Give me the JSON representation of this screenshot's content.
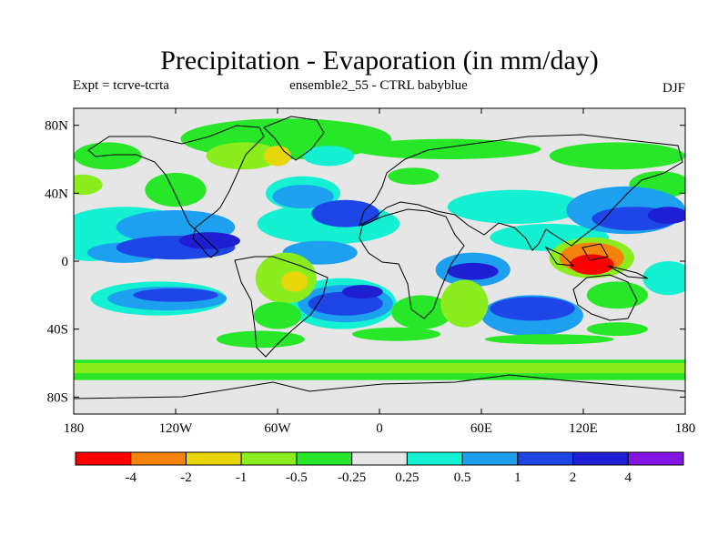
{
  "chart_data": {
    "type": "heatmap",
    "title": "Precipitation - Evaporation (in mm/day)",
    "left_label": "Expt = tcrve-tcrta",
    "center_label": "ensemble2_55 - CTRL babyblue",
    "right_label": "DJF",
    "projection": "cylindrical-equidistant",
    "x_range": [
      -180,
      180
    ],
    "y_range": [
      -90,
      90
    ],
    "x_ticks": [
      {
        "value": -180,
        "label": "180"
      },
      {
        "value": -120,
        "label": "120W"
      },
      {
        "value": -60,
        "label": "60W"
      },
      {
        "value": 0,
        "label": "0"
      },
      {
        "value": 60,
        "label": "60E"
      },
      {
        "value": 120,
        "label": "120E"
      },
      {
        "value": 180,
        "label": "180"
      }
    ],
    "y_ticks": [
      {
        "value": 80,
        "label": "80N"
      },
      {
        "value": 40,
        "label": "40N"
      },
      {
        "value": 0,
        "label": "0"
      },
      {
        "value": -40,
        "label": "40S"
      },
      {
        "value": -80,
        "label": "80S"
      }
    ],
    "colorbar": {
      "colors": [
        "#ff0000",
        "#f5820a",
        "#e6d60a",
        "#8ced1e",
        "#28e628",
        "#e6e6e6",
        "#14f0d2",
        "#1ea0f0",
        "#1e46e6",
        "#1e1ed2",
        "#8214e6"
      ],
      "labels": [
        "-4",
        "-2",
        "-1",
        "-0.5",
        "-0.25",
        "0.25",
        "0.5",
        "1",
        "2",
        "4"
      ]
    },
    "regions": [
      {
        "lon": -55,
        "lat": 72,
        "rx": 62,
        "ry": 12,
        "level": 4
      },
      {
        "lon": -160,
        "lat": 62,
        "rx": 20,
        "ry": 8,
        "level": 4
      },
      {
        "lon": -120,
        "lat": 42,
        "rx": 18,
        "ry": 10,
        "level": 4
      },
      {
        "lon": -80,
        "lat": 62,
        "rx": 22,
        "ry": 8,
        "level": 3
      },
      {
        "lon": -60,
        "lat": 62,
        "rx": 8,
        "ry": 6,
        "level": 2
      },
      {
        "lon": -30,
        "lat": 62,
        "rx": 15,
        "ry": 6,
        "level": 6
      },
      {
        "lon": 40,
        "lat": 66,
        "rx": 55,
        "ry": 6,
        "level": 4
      },
      {
        "lon": 20,
        "lat": 50,
        "rx": 15,
        "ry": 5,
        "level": 4
      },
      {
        "lon": 140,
        "lat": 62,
        "rx": 40,
        "ry": 8,
        "level": 4
      },
      {
        "lon": 165,
        "lat": 45,
        "rx": 18,
        "ry": 8,
        "level": 4
      },
      {
        "lon": 80,
        "lat": 32,
        "rx": 40,
        "ry": 10,
        "level": 6
      },
      {
        "lon": 100,
        "lat": 14,
        "rx": 35,
        "ry": 8,
        "level": 6
      },
      {
        "lon": -30,
        "lat": 22,
        "rx": 42,
        "ry": 12,
        "level": 6
      },
      {
        "lon": -150,
        "lat": 22,
        "rx": 35,
        "ry": 10,
        "level": 6
      },
      {
        "lon": -45,
        "lat": 40,
        "rx": 22,
        "ry": 10,
        "level": 6
      },
      {
        "lon": -170,
        "lat": 10,
        "rx": 20,
        "ry": 10,
        "level": 6
      },
      {
        "lon": 145,
        "lat": 30,
        "rx": 35,
        "ry": 14,
        "level": 7
      },
      {
        "lon": -150,
        "lat": 5,
        "rx": 22,
        "ry": 6,
        "level": 7
      },
      {
        "lon": -35,
        "lat": 5,
        "rx": 22,
        "ry": 7,
        "level": 7
      },
      {
        "lon": -120,
        "lat": 20,
        "rx": 35,
        "ry": 10,
        "level": 7
      },
      {
        "lon": -45,
        "lat": 38,
        "rx": 18,
        "ry": 7,
        "level": 7
      },
      {
        "lon": -120,
        "lat": 8,
        "rx": 35,
        "ry": 7,
        "level": 8
      },
      {
        "lon": -20,
        "lat": 28,
        "rx": 20,
        "ry": 8,
        "level": 8
      },
      {
        "lon": 150,
        "lat": 25,
        "rx": 25,
        "ry": 7,
        "level": 8
      },
      {
        "lon": -100,
        "lat": 12,
        "rx": 18,
        "ry": 5,
        "level": 9
      },
      {
        "lon": 170,
        "lat": 27,
        "rx": 12,
        "ry": 5,
        "level": 9
      },
      {
        "lon": 170,
        "lat": -10,
        "rx": 15,
        "ry": 10,
        "level": 6
      },
      {
        "lon": -130,
        "lat": -22,
        "rx": 40,
        "ry": 10,
        "level": 6
      },
      {
        "lon": -125,
        "lat": -22,
        "rx": 35,
        "ry": 7,
        "level": 7
      },
      {
        "lon": -120,
        "lat": -20,
        "rx": 25,
        "ry": 4,
        "level": 8
      },
      {
        "lon": -22,
        "lat": -25,
        "rx": 32,
        "ry": 15,
        "level": 6
      },
      {
        "lon": -20,
        "lat": -25,
        "rx": 28,
        "ry": 11,
        "level": 7
      },
      {
        "lon": -20,
        "lat": -25,
        "rx": 22,
        "ry": 7,
        "level": 8
      },
      {
        "lon": 90,
        "lat": -32,
        "rx": 30,
        "ry": 12,
        "level": 7
      },
      {
        "lon": 90,
        "lat": -28,
        "rx": 25,
        "ry": 7,
        "level": 8
      },
      {
        "lon": 55,
        "lat": -5,
        "rx": 22,
        "ry": 10,
        "level": 7
      },
      {
        "lon": 55,
        "lat": -6,
        "rx": 15,
        "ry": 5,
        "level": 9
      },
      {
        "lon": 25,
        "lat": -30,
        "rx": 18,
        "ry": 10,
        "level": 4
      },
      {
        "lon": 50,
        "lat": -25,
        "rx": 14,
        "ry": 14,
        "level": 3
      },
      {
        "lon": -55,
        "lat": -10,
        "rx": 18,
        "ry": 15,
        "level": 3
      },
      {
        "lon": -50,
        "lat": -12,
        "rx": 8,
        "ry": 6,
        "level": 2
      },
      {
        "lon": -60,
        "lat": -32,
        "rx": 14,
        "ry": 8,
        "level": 4
      },
      {
        "lon": 125,
        "lat": 2,
        "rx": 25,
        "ry": 12,
        "level": 3
      },
      {
        "lon": 125,
        "lat": 2,
        "rx": 19,
        "ry": 9,
        "level": 1
      },
      {
        "lon": 125,
        "lat": -2,
        "rx": 13,
        "ry": 6,
        "level": 0
      },
      {
        "lon": 140,
        "lat": -20,
        "rx": 18,
        "ry": 8,
        "level": 4
      },
      {
        "lon": -70,
        "lat": -46,
        "rx": 26,
        "ry": 5,
        "level": 4
      },
      {
        "lon": 10,
        "lat": -43,
        "rx": 26,
        "ry": 4,
        "level": 4
      },
      {
        "lon": 100,
        "lat": -46,
        "rx": 38,
        "ry": 3,
        "level": 4
      },
      {
        "lon": 140,
        "lat": -40,
        "rx": 18,
        "ry": 4,
        "level": 4
      },
      {
        "lon": -175,
        "lat": 45,
        "rx": 12,
        "ry": 6,
        "level": 3
      },
      {
        "lon": -10,
        "lat": -18,
        "rx": 12,
        "ry": 4,
        "level": 9
      }
    ],
    "bands": [
      {
        "lat_from": -58,
        "lat_to": -70,
        "level": 4
      },
      {
        "lat_from": -60,
        "lat_to": -66,
        "level": 3
      }
    ]
  }
}
